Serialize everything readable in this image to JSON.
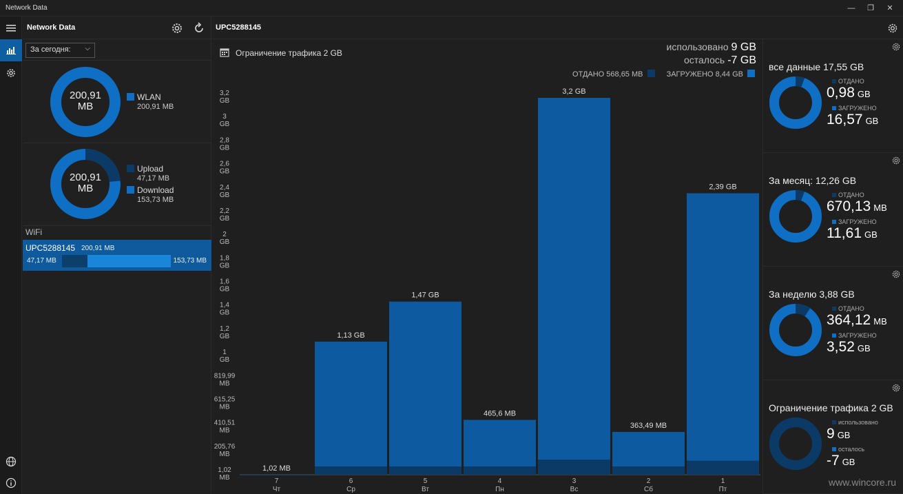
{
  "window": {
    "title": "Network Data",
    "minimize": "—",
    "maximize": "❐",
    "close": "✕"
  },
  "left": {
    "title": "Network Data",
    "period_select": "За сегодня:",
    "donut1": {
      "value": "200,91",
      "unit": "MB",
      "legend": "WLAN",
      "legend_value": "200,91 MB",
      "fraction": 1.0
    },
    "donut2": {
      "value": "200,91",
      "unit": "MB",
      "upload_label": "Upload",
      "upload_value": "47,17 MB",
      "download_label": "Download",
      "download_value": "153,73 MB",
      "upload_fraction": 0.235
    },
    "wifi_section": "WiFi",
    "wifi_item": {
      "name": "UPC5288145",
      "total": "200,91 MB",
      "up": "47,17 MB",
      "down": "153,73 MB",
      "up_fraction": 0.235
    }
  },
  "topbar": {
    "network": "UPC5288145"
  },
  "chart_header": {
    "limit_title": "Ограничение трафика 2 GB",
    "used_label": "использовано",
    "used_value": "9 GB",
    "left_label": "осталось",
    "left_value": "-7 GB",
    "sent_label": "ОТДАНО 568,65 MB",
    "recv_label": "ЗАГРУЖЕНО 8,44 GB"
  },
  "chart_data": {
    "type": "bar",
    "categories": [
      "7 Чт",
      "6 Ср",
      "5 Вт",
      "4 Пн",
      "3 Вс",
      "2 Сб",
      "1 Пт"
    ],
    "day_numbers": [
      "7",
      "6",
      "5",
      "4",
      "3",
      "2",
      "1"
    ],
    "day_names": [
      "Чт",
      "Ср",
      "Вт",
      "Пн",
      "Вс",
      "Сб",
      "Пт"
    ],
    "values_gb": [
      0.001,
      1.13,
      1.47,
      0.4656,
      3.2,
      0.3635,
      2.39
    ],
    "upload_fraction": [
      0.5,
      0.05,
      0.04,
      0.08,
      0.04,
      0.1,
      0.05
    ],
    "data_labels": [
      "1,02 MB",
      "1,13 GB",
      "1,47 GB",
      "465,6 MB",
      "3,2 GB",
      "363,49 MB",
      "2,39 GB"
    ],
    "y_ticks": [
      {
        "v": 0,
        "a": "1,02",
        "b": "MB"
      },
      {
        "v": 0.2,
        "a": "205,76",
        "b": "MB"
      },
      {
        "v": 0.4,
        "a": "410,51",
        "b": "MB"
      },
      {
        "v": 0.6,
        "a": "615,25",
        "b": "MB"
      },
      {
        "v": 0.8,
        "a": "819,99",
        "b": "MB"
      },
      {
        "v": 1.0,
        "a": "1",
        "b": "GB"
      },
      {
        "v": 1.2,
        "a": "1,2",
        "b": "GB"
      },
      {
        "v": 1.4,
        "a": "1,4",
        "b": "GB"
      },
      {
        "v": 1.6,
        "a": "1,6",
        "b": "GB"
      },
      {
        "v": 1.8,
        "a": "1,8",
        "b": "GB"
      },
      {
        "v": 2.0,
        "a": "2",
        "b": "GB"
      },
      {
        "v": 2.2,
        "a": "2,2",
        "b": "GB"
      },
      {
        "v": 2.4,
        "a": "2,4",
        "b": "GB"
      },
      {
        "v": 2.6,
        "a": "2,6",
        "b": "GB"
      },
      {
        "v": 2.8,
        "a": "2,8",
        "b": "GB"
      },
      {
        "v": 3.0,
        "a": "3",
        "b": "GB"
      },
      {
        "v": 3.2,
        "a": "3,2",
        "b": "GB"
      }
    ],
    "ylim": [
      0,
      3.2
    ],
    "colors": {
      "download": "#0e5aa0",
      "upload": "#0b3a66"
    }
  },
  "right": {
    "cards": [
      {
        "title": "все данные 17,55 GB",
        "l1": "ОТДАНО",
        "v1": "0,98",
        "u1": "GB",
        "l2": "ЗАГРУЖЕНО",
        "v2": "16,57",
        "u2": "GB",
        "fraction": 0.056
      },
      {
        "title": "За месяц: 12,26 GB",
        "l1": "ОТДАНО",
        "v1": "670,13",
        "u1": "MB",
        "l2": "ЗАГРУЖЕНО",
        "v2": "11,61",
        "u2": "GB",
        "fraction": 0.055
      },
      {
        "title": "За неделю 3,88 GB",
        "l1": "ОТДАНО",
        "v1": "364,12",
        "u1": "MB",
        "l2": "ЗАГРУЖЕНО",
        "v2": "3,52",
        "u2": "GB",
        "fraction": 0.094
      },
      {
        "title": "Ограничение трафика 2 GB",
        "l1": "использовано",
        "v1": "9",
        "u1": "GB",
        "l2": "осталось",
        "v2": "-7",
        "u2": "GB",
        "fraction": 1.0
      }
    ],
    "watermark": "www.wincore.ru"
  },
  "colors": {
    "accent": "#0e6fc5",
    "accent_dark": "#0b3a66",
    "bg": "#1f1f1f"
  }
}
